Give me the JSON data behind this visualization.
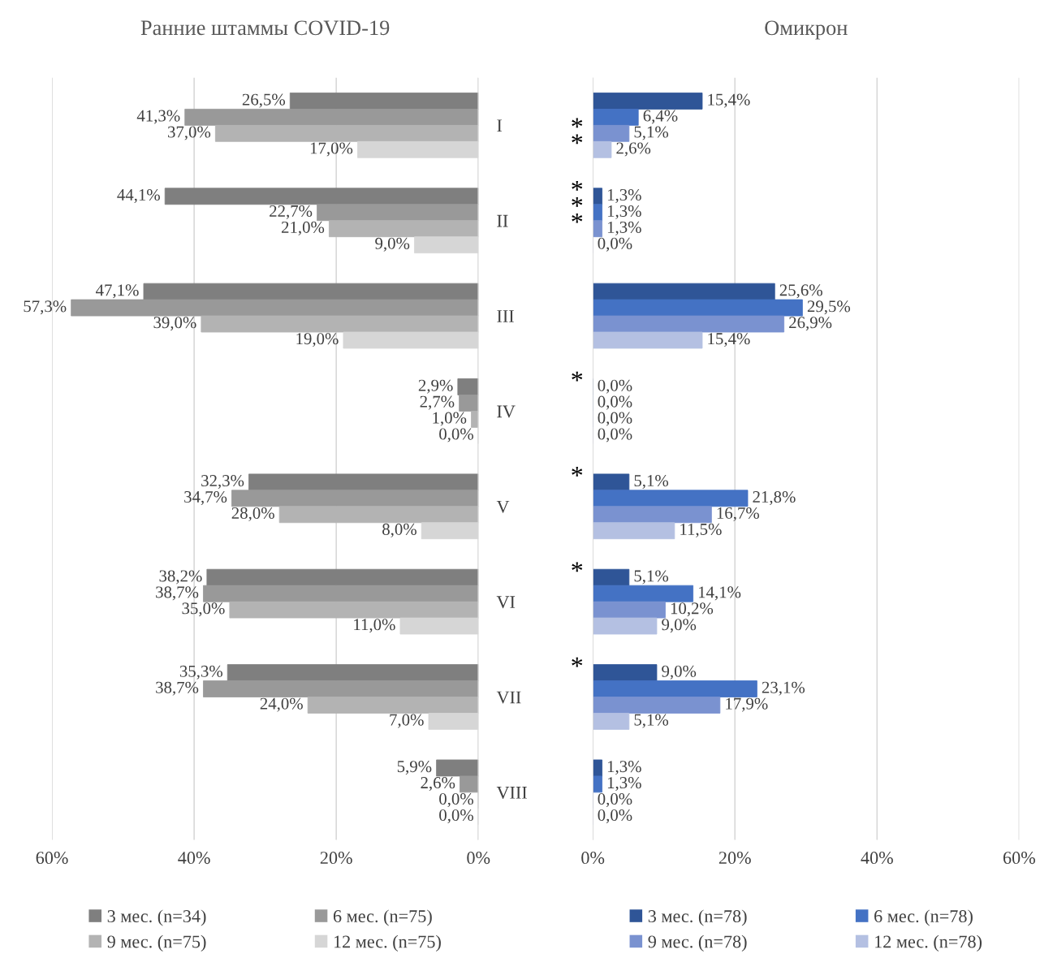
{
  "chart_data": [
    {
      "type": "bar",
      "orientation": "horizontal",
      "title": "Ранние штаммы COVID-19",
      "categories": [
        "I",
        "II",
        "III",
        "IV",
        "V",
        "VI",
        "VII",
        "VIII"
      ],
      "series": [
        {
          "name": "3 мес. (n=34)",
          "color": "#7f7f7f",
          "values": [
            26.5,
            44.1,
            47.1,
            2.9,
            32.3,
            38.2,
            35.3,
            5.9
          ],
          "value_labels": [
            "26,5%",
            "44,1%",
            "47,1%",
            "2,9%",
            "32,3%",
            "38,2%",
            "35,3%",
            "5,9%"
          ]
        },
        {
          "name": "6 мес. (n=75)",
          "color": "#999999",
          "values": [
            41.3,
            22.7,
            57.3,
            2.7,
            34.7,
            38.7,
            38.7,
            2.6
          ],
          "value_labels": [
            "41,3%",
            "22,7%",
            "57,3%",
            "2,7%",
            "34,7%",
            "38,7%",
            "38,7%",
            "2,6%"
          ]
        },
        {
          "name": "9 мес. (n=75)",
          "color": "#b3b3b3",
          "values": [
            37.0,
            21.0,
            39.0,
            1.0,
            28.0,
            35.0,
            24.0,
            0.0
          ],
          "value_labels": [
            "37,0%",
            "21,0%",
            "39,0%",
            "1,0%",
            "28,0%",
            "35,0%",
            "24,0%",
            "0,0%"
          ]
        },
        {
          "name": "12 мес. (n=75)",
          "color": "#d6d6d6",
          "values": [
            17.0,
            9.0,
            19.0,
            0.0,
            8.0,
            11.0,
            7.0,
            0.0
          ],
          "value_labels": [
            "17,0%",
            "9,0%",
            "19,0%",
            "0,0%",
            "8,0%",
            "11,0%",
            "7,0%",
            "0,0%"
          ]
        }
      ],
      "xlim": [
        60,
        0
      ],
      "xticks": [
        {
          "value": 60,
          "label": "60%"
        },
        {
          "value": 40,
          "label": "40%"
        },
        {
          "value": 20,
          "label": "20%"
        },
        {
          "value": 0,
          "label": "0%"
        }
      ],
      "grid": "x",
      "legend": "bottom"
    },
    {
      "type": "bar",
      "orientation": "horizontal",
      "title": "Омикрон",
      "categories": [
        null,
        null,
        null,
        null,
        null,
        null,
        null,
        null
      ],
      "series": [
        {
          "name": "3 мес. (n=78)",
          "color": "#2f5597",
          "values": [
            15.4,
            1.3,
            25.6,
            0.0,
            5.1,
            5.1,
            9.0,
            1.3
          ],
          "value_labels": [
            "15,4%",
            "1,3%",
            "25,6%",
            "0,0%",
            "5,1%",
            "5,1%",
            "9,0%",
            "1,3%"
          ]
        },
        {
          "name": "6 мес. (n=78)",
          "color": "#4472c4",
          "values": [
            6.4,
            1.3,
            29.5,
            0.0,
            21.8,
            14.1,
            23.1,
            1.3
          ],
          "value_labels": [
            "6,4%",
            "1,3%",
            "29,5%",
            "0,0%",
            "21,8%",
            "14,1%",
            "23,1%",
            "1,3%"
          ]
        },
        {
          "name": "9 мес. (n=78)",
          "color": "#7a92d0",
          "values": [
            5.1,
            1.3,
            26.9,
            0.0,
            16.7,
            10.2,
            17.9,
            0.0
          ],
          "value_labels": [
            "5,1%",
            "1,3%",
            "26,9%",
            "0,0%",
            "16,7%",
            "10,2%",
            "17,9%",
            "0,0%"
          ]
        },
        {
          "name": "12 мес. (n=78)",
          "color": "#b4c0e2",
          "values": [
            2.6,
            0.0,
            15.4,
            0.0,
            11.5,
            9.0,
            5.1,
            0.0
          ],
          "value_labels": [
            "2,6%",
            "0,0%",
            "15,4%",
            "0,0%",
            "11,5%",
            "9,0%",
            "5,1%",
            "0,0%"
          ]
        }
      ],
      "xlim": [
        0,
        60
      ],
      "xticks": [
        {
          "value": 0,
          "label": "0%"
        },
        {
          "value": 20,
          "label": "20%"
        },
        {
          "value": 40,
          "label": "40%"
        },
        {
          "value": 60,
          "label": "60%"
        }
      ],
      "annotations": [
        "*",
        "*",
        "*",
        "*",
        "*",
        "*",
        "*",
        "*",
        "*"
      ],
      "grid": "x",
      "legend": "bottom"
    }
  ]
}
